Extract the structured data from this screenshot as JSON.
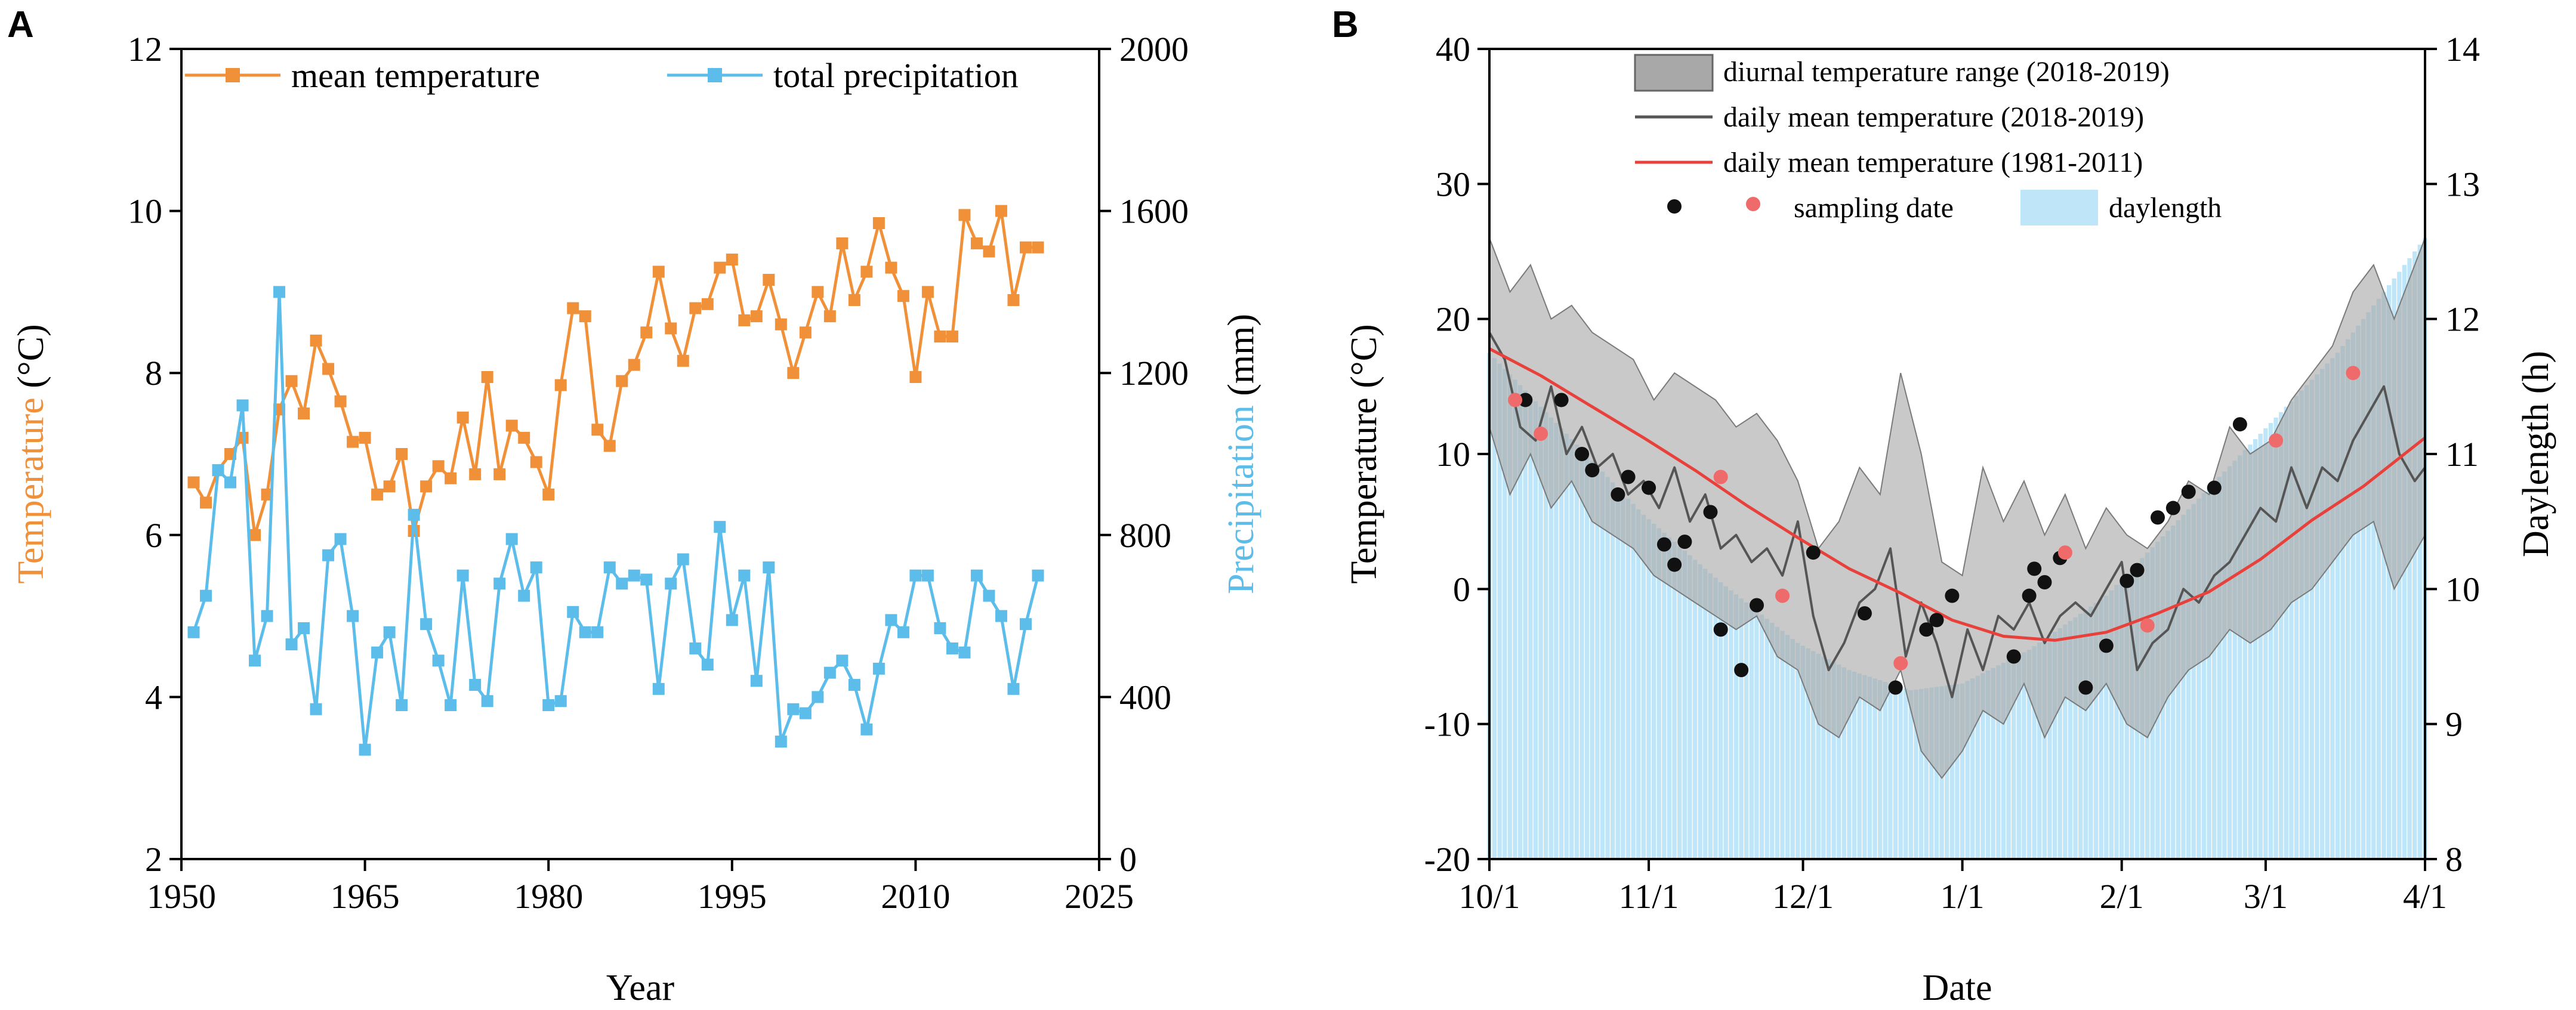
{
  "colors": {
    "temperature": "#f0913a",
    "precipitation": "#5dbdea",
    "daylength": "#bfe6f8",
    "dtr": "#a8a8a8",
    "daily_mean_recent": "#555555",
    "daily_mean_normal": "#e8413c",
    "sampling_black": "#111111",
    "sampling_red": "#ef6b6b"
  },
  "chart_data": [
    {
      "type": "line",
      "panel": "A",
      "xlabel": "Year",
      "ylabel_left": "Temperature (°C)",
      "ylabel_left_parts": [
        "Temperature",
        " (°C)"
      ],
      "ylabel_right": "Precipitation (mm)",
      "ylabel_right_parts": [
        "Precipitation",
        " (mm)"
      ],
      "xlim": [
        1950,
        2025
      ],
      "ylim_left": [
        2,
        12
      ],
      "ylim_right": [
        0,
        2000
      ],
      "x_ticks": [
        "1950",
        "1965",
        "1980",
        "1995",
        "2010",
        "2025"
      ],
      "y_left_ticks": [
        "2",
        "4",
        "6",
        "8",
        "10",
        "12"
      ],
      "y_right_ticks": [
        "0",
        "400",
        "800",
        "1200",
        "1600",
        "2000"
      ],
      "legend": [
        "mean temperature",
        "total precipitation"
      ],
      "x": [
        1951,
        1952,
        1953,
        1954,
        1955,
        1956,
        1957,
        1958,
        1959,
        1960,
        1961,
        1962,
        1963,
        1964,
        1965,
        1966,
        1967,
        1968,
        1969,
        1970,
        1971,
        1972,
        1973,
        1974,
        1975,
        1976,
        1977,
        1978,
        1979,
        1980,
        1981,
        1982,
        1983,
        1984,
        1985,
        1986,
        1987,
        1988,
        1989,
        1990,
        1991,
        1992,
        1993,
        1994,
        1995,
        1996,
        1997,
        1998,
        1999,
        2000,
        2001,
        2002,
        2003,
        2004,
        2005,
        2006,
        2007,
        2008,
        2009,
        2010,
        2011,
        2012,
        2013,
        2014,
        2015,
        2016,
        2017,
        2018,
        2019,
        2020,
        2021
      ],
      "series": [
        {
          "name": "mean temperature",
          "axis": "left",
          "values": [
            6.65,
            6.4,
            6.8,
            7.0,
            7.2,
            6.0,
            6.5,
            7.55,
            7.9,
            7.5,
            8.4,
            8.05,
            7.65,
            7.15,
            7.2,
            6.5,
            6.6,
            7.0,
            6.05,
            6.6,
            6.85,
            6.7,
            7.45,
            6.75,
            7.95,
            6.75,
            7.35,
            7.2,
            6.9,
            6.5,
            7.85,
            8.8,
            8.7,
            7.3,
            7.1,
            7.9,
            8.1,
            8.5,
            9.25,
            8.55,
            8.15,
            8.8,
            8.85,
            9.3,
            9.4,
            8.65,
            8.7,
            9.15,
            8.6,
            8.0,
            8.5,
            9.0,
            8.7,
            9.6,
            8.9,
            9.25,
            9.85,
            9.3,
            8.95,
            7.95,
            9.0,
            8.45,
            8.45,
            9.95,
            9.6,
            9.5,
            10.0,
            8.9,
            9.55,
            9.55,
            null
          ]
        },
        {
          "name": "total precipitation",
          "axis": "right",
          "values": [
            560,
            650,
            960,
            930,
            1120,
            490,
            600,
            1400,
            530,
            570,
            370,
            750,
            790,
            600,
            270,
            510,
            560,
            380,
            850,
            580,
            490,
            380,
            700,
            430,
            390,
            680,
            790,
            650,
            720,
            380,
            390,
            610,
            560,
            560,
            720,
            680,
            700,
            690,
            420,
            680,
            740,
            520,
            480,
            820,
            590,
            700,
            440,
            720,
            290,
            370,
            360,
            400,
            460,
            490,
            430,
            320,
            470,
            590,
            560,
            700,
            700,
            570,
            520,
            510,
            700,
            650,
            600,
            420,
            580,
            700,
            null
          ]
        }
      ]
    },
    {
      "type": "line",
      "panel": "B",
      "xlabel": "Date",
      "ylabel_left": "Temperature (°C)",
      "ylabel_right": "Daylength (h)",
      "xlim_days": [
        0,
        182
      ],
      "ylim_left": [
        -20,
        40
      ],
      "ylim_right": [
        8,
        14
      ],
      "x_ticks": [
        "10/1",
        "11/1",
        "12/1",
        "1/1",
        "2/1",
        "3/1",
        "4/1"
      ],
      "x_tick_days": [
        0,
        31,
        61,
        92,
        123,
        151,
        182
      ],
      "y_left_ticks": [
        "-20",
        "-10",
        "0",
        "10",
        "20",
        "30",
        "40"
      ],
      "y_right_ticks": [
        "8",
        "9",
        "10",
        "11",
        "12",
        "13",
        "14"
      ],
      "legend": [
        "diurnal temperature range (2018-2019)",
        "daily mean temperature (2018-2019)",
        "daily mean temperature (1981-2011)",
        "sampling date",
        "daylength"
      ],
      "daylength_hours": {
        "day": [
          0,
          15,
          30,
          45,
          60,
          70,
          82,
          92,
          105,
          120,
          135,
          150,
          165,
          182
        ],
        "hours": [
          11.75,
          11.15,
          10.55,
          10.05,
          9.6,
          9.4,
          9.25,
          9.3,
          9.55,
          9.95,
          10.55,
          11.15,
          11.75,
          12.6
        ]
      },
      "diurnal_range": {
        "day": [
          0,
          4,
          8,
          12,
          16,
          20,
          24,
          28,
          32,
          36,
          40,
          44,
          48,
          52,
          56,
          60,
          64,
          68,
          72,
          76,
          80,
          84,
          88,
          92,
          96,
          100,
          104,
          108,
          112,
          116,
          120,
          124,
          128,
          132,
          136,
          140,
          144,
          148,
          152,
          156,
          160,
          164,
          168,
          172,
          176,
          182
        ],
        "high": [
          26,
          22,
          24,
          20,
          21,
          19,
          18,
          17,
          14,
          16,
          15,
          14,
          12,
          13,
          11,
          8,
          3,
          5,
          9,
          7,
          16,
          10,
          2,
          1,
          9,
          5,
          8,
          4,
          7,
          3,
          6,
          4,
          3,
          5,
          8,
          7,
          12,
          10,
          11,
          14,
          16,
          18,
          22,
          24,
          20,
          26
        ],
        "low": [
          12,
          7,
          10,
          6,
          8,
          5,
          4,
          3,
          1,
          0,
          -1,
          -2,
          -3,
          -2,
          -5,
          -6,
          -10,
          -11,
          -8,
          -9,
          -6,
          -12,
          -14,
          -12,
          -9,
          -10,
          -7,
          -11,
          -8,
          -9,
          -7,
          -10,
          -11,
          -8,
          -6,
          -5,
          -3,
          -4,
          -3,
          -1,
          0,
          2,
          4,
          5,
          0,
          4
        ]
      },
      "series": [
        {
          "name": "daily mean temperature (2018-2019)",
          "day": [
            0,
            3,
            6,
            9,
            12,
            15,
            18,
            21,
            24,
            27,
            30,
            33,
            36,
            39,
            42,
            45,
            48,
            51,
            54,
            57,
            60,
            63,
            66,
            69,
            72,
            75,
            78,
            81,
            84,
            87,
            90,
            93,
            96,
            99,
            102,
            105,
            108,
            111,
            114,
            117,
            120,
            123,
            126,
            129,
            132,
            135,
            138,
            141,
            144,
            147,
            150,
            153,
            156,
            159,
            162,
            165,
            168,
            171,
            174,
            177,
            180,
            182
          ],
          "values": [
            19,
            17,
            12,
            11,
            15,
            10,
            12,
            9,
            10,
            7,
            8,
            6,
            9,
            5,
            7,
            3,
            4,
            2,
            3,
            1,
            5,
            -2,
            -6,
            -4,
            -1,
            0,
            3,
            -5,
            -1,
            -4,
            -8,
            -3,
            -6,
            -2,
            -3,
            -1,
            -4,
            -2,
            -1,
            -2,
            0,
            2,
            -6,
            -4,
            -3,
            0,
            -1,
            1,
            2,
            4,
            6,
            5,
            9,
            6,
            9,
            8,
            11,
            13,
            15,
            10,
            8,
            9
          ]
        },
        {
          "name": "daily mean temperature (1981-2011)",
          "day": [
            0,
            10,
            20,
            30,
            40,
            50,
            60,
            70,
            80,
            90,
            100,
            110,
            120,
            130,
            140,
            150,
            160,
            170,
            182
          ],
          "values": [
            17.8,
            15.8,
            13.5,
            11.2,
            8.8,
            6.2,
            3.8,
            1.5,
            -0.3,
            -2.3,
            -3.5,
            -3.8,
            -3.2,
            -1.8,
            -0.2,
            2.2,
            5.1,
            7.6,
            11.2
          ]
        }
      ],
      "sampling_dates": {
        "black": [
          [
            7,
            14
          ],
          [
            14,
            14
          ],
          [
            18,
            10
          ],
          [
            20,
            8.8
          ],
          [
            25,
            7
          ],
          [
            27,
            8.3
          ],
          [
            31,
            7.5
          ],
          [
            34,
            3.3
          ],
          [
            36,
            1.8
          ],
          [
            38,
            3.5
          ],
          [
            43,
            5.7
          ],
          [
            45,
            -3
          ],
          [
            49,
            -6
          ],
          [
            52,
            -1.2
          ],
          [
            63,
            2.7
          ],
          [
            73,
            -1.8
          ],
          [
            79,
            -7.3
          ],
          [
            85,
            -3
          ],
          [
            87,
            -2.3
          ],
          [
            90,
            -0.5
          ],
          [
            102,
            -5
          ],
          [
            105,
            -0.5
          ],
          [
            106,
            1.5
          ],
          [
            108,
            0.5
          ],
          [
            111,
            2.3
          ],
          [
            116,
            -7.3
          ],
          [
            120,
            -4.2
          ],
          [
            124,
            0.6
          ],
          [
            126,
            1.4
          ],
          [
            130,
            5.3
          ],
          [
            133,
            6
          ],
          [
            136,
            7.2
          ],
          [
            141,
            7.5
          ],
          [
            146,
            12.2
          ]
        ],
        "red": [
          [
            5,
            14
          ],
          [
            10,
            11.5
          ],
          [
            45,
            8.3
          ],
          [
            57,
            -0.5
          ],
          [
            80,
            -5.5
          ],
          [
            112,
            2.7
          ],
          [
            128,
            -2.7
          ],
          [
            153,
            11
          ],
          [
            168,
            16
          ]
        ]
      }
    }
  ]
}
